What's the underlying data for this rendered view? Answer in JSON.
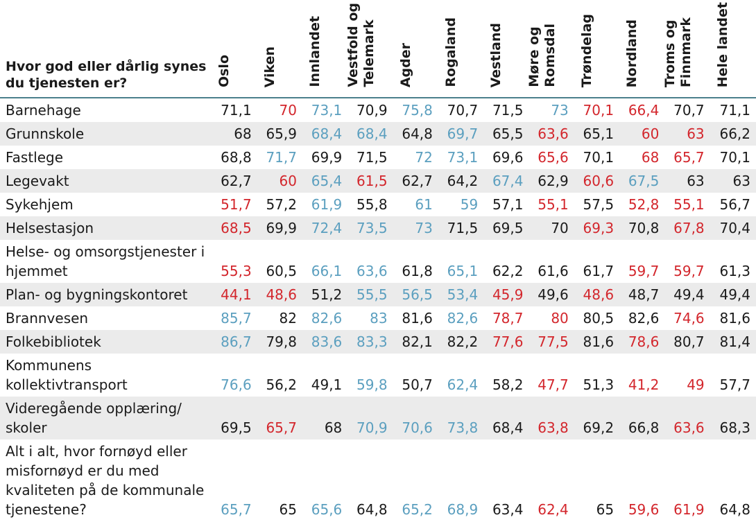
{
  "header": {
    "question": "Hvor god eller dårlig synes du tjenesten er?",
    "regions": [
      "Oslo",
      "Viken",
      "Innlandet",
      "Vestfold og\nTelemark",
      "Agder",
      "Rogaland",
      "Vestland",
      "Møre og\nRomsdal",
      "Trøndelag",
      "Nordland",
      "Troms og\nFinnmark",
      "Hele landet"
    ]
  },
  "colors": {
    "neutral": "#1a1a1a",
    "high": "#5b9fbf",
    "low": "#d3262c",
    "row_band": "#ebebeb",
    "header_rule": "#4a7f8c"
  },
  "rows": [
    {
      "label": "Barnehage",
      "values": [
        "71,1",
        "70",
        "73,1",
        "70,9",
        "75,8",
        "70,7",
        "71,5",
        "73",
        "70,1",
        "66,4",
        "70,7",
        "71,1"
      ],
      "status": [
        "n",
        "l",
        "h",
        "n",
        "h",
        "n",
        "n",
        "h",
        "l",
        "l",
        "n",
        "n"
      ]
    },
    {
      "label": "Grunnskole",
      "values": [
        "68",
        "65,9",
        "68,4",
        "68,4",
        "64,8",
        "69,7",
        "65,5",
        "63,6",
        "65,1",
        "60",
        "63",
        "66,2"
      ],
      "status": [
        "n",
        "n",
        "h",
        "h",
        "n",
        "h",
        "n",
        "l",
        "n",
        "l",
        "l",
        "n"
      ]
    },
    {
      "label": "Fastlege",
      "values": [
        "68,8",
        "71,7",
        "69,9",
        "71,5",
        "72",
        "73,1",
        "69,6",
        "65,6",
        "70,1",
        "68",
        "65,7",
        "70,1"
      ],
      "status": [
        "n",
        "h",
        "n",
        "n",
        "h",
        "h",
        "n",
        "l",
        "n",
        "l",
        "l",
        "n"
      ]
    },
    {
      "label": "Legevakt",
      "values": [
        "62,7",
        "60",
        "65,4",
        "61,5",
        "62,7",
        "64,2",
        "67,4",
        "62,9",
        "60,6",
        "67,5",
        "63",
        "63"
      ],
      "status": [
        "n",
        "l",
        "h",
        "l",
        "n",
        "n",
        "h",
        "n",
        "l",
        "h",
        "n",
        "n"
      ]
    },
    {
      "label": "Sykehjem",
      "values": [
        "51,7",
        "57,2",
        "61,9",
        "55,8",
        "61",
        "59",
        "57,1",
        "55,1",
        "57,5",
        "52,8",
        "55,1",
        "56,7"
      ],
      "status": [
        "l",
        "n",
        "h",
        "n",
        "h",
        "h",
        "n",
        "l",
        "n",
        "l",
        "l",
        "n"
      ]
    },
    {
      "label": "Helsestasjon",
      "values": [
        "68,5",
        "69,9",
        "72,4",
        "73,5",
        "73",
        "71,5",
        "69,5",
        "70",
        "69,3",
        "70,8",
        "67,8",
        "70,4"
      ],
      "status": [
        "l",
        "n",
        "h",
        "h",
        "h",
        "n",
        "n",
        "n",
        "l",
        "n",
        "l",
        "n"
      ]
    },
    {
      "label": "Helse- og omsorgstjenester i hjemmet",
      "values": [
        "55,3",
        "60,5",
        "66,1",
        "63,6",
        "61,8",
        "65,1",
        "62,2",
        "61,6",
        "61,7",
        "59,7",
        "59,7",
        "61,3"
      ],
      "status": [
        "l",
        "n",
        "h",
        "h",
        "n",
        "h",
        "n",
        "n",
        "n",
        "l",
        "l",
        "n"
      ]
    },
    {
      "label": "Plan- og bygningskontoret",
      "values": [
        "44,1",
        "48,6",
        "51,2",
        "55,5",
        "56,5",
        "53,4",
        "45,9",
        "49,6",
        "48,6",
        "48,7",
        "49,4",
        "49,4"
      ],
      "status": [
        "l",
        "l",
        "n",
        "h",
        "h",
        "h",
        "l",
        "n",
        "l",
        "n",
        "n",
        "n"
      ]
    },
    {
      "label": "Brannvesen",
      "values": [
        "85,7",
        "82",
        "82,6",
        "83",
        "81,6",
        "82,6",
        "78,7",
        "80",
        "80,5",
        "82,6",
        "74,6",
        "81,6"
      ],
      "status": [
        "h",
        "n",
        "h",
        "h",
        "n",
        "h",
        "l",
        "l",
        "n",
        "n",
        "l",
        "n"
      ]
    },
    {
      "label": "Folkebibliotek",
      "values": [
        "86,7",
        "79,8",
        "83,6",
        "83,3",
        "82,1",
        "82,2",
        "77,6",
        "77,5",
        "81,6",
        "78,6",
        "80,7",
        "81,4"
      ],
      "status": [
        "h",
        "n",
        "h",
        "h",
        "n",
        "n",
        "l",
        "l",
        "n",
        "l",
        "n",
        "n"
      ]
    },
    {
      "label": "Kommunens kollektivtransport",
      "values": [
        "76,6",
        "56,2",
        "49,1",
        "59,8",
        "50,7",
        "62,4",
        "58,2",
        "47,7",
        "51,3",
        "41,2",
        "49",
        "57,7"
      ],
      "status": [
        "h",
        "n",
        "n",
        "h",
        "n",
        "h",
        "n",
        "l",
        "n",
        "l",
        "l",
        "n"
      ]
    },
    {
      "label": "Videregående opplæring/ skoler",
      "values": [
        "69,5",
        "65,7",
        "68",
        "70,9",
        "70,6",
        "73,8",
        "68,4",
        "63,8",
        "69,2",
        "66,8",
        "63,6",
        "68,3"
      ],
      "status": [
        "n",
        "l",
        "n",
        "h",
        "h",
        "h",
        "n",
        "l",
        "n",
        "n",
        "l",
        "n"
      ]
    },
    {
      "label": "Alt i alt, hvor fornøyd eller misfornøyd er du med kvaliteten på de kommunale tjenestene?",
      "values": [
        "65,7",
        "65",
        "65,6",
        "64,8",
        "65,2",
        "68,9",
        "63,4",
        "62,4",
        "65",
        "59,6",
        "61,9",
        "64,8"
      ],
      "status": [
        "h",
        "n",
        "h",
        "n",
        "h",
        "h",
        "n",
        "l",
        "n",
        "l",
        "l",
        "n"
      ]
    }
  ]
}
